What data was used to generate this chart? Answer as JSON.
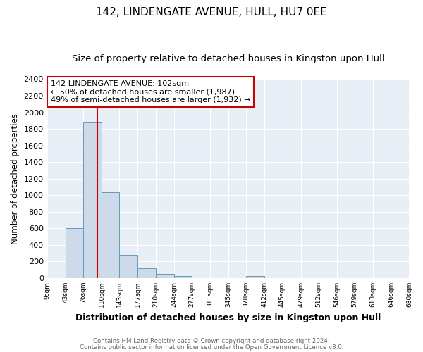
{
  "title": "142, LINDENGATE AVENUE, HULL, HU7 0EE",
  "subtitle": "Size of property relative to detached houses in Kingston upon Hull",
  "xlabel": "Distribution of detached houses by size in Kingston upon Hull",
  "ylabel": "Number of detached properties",
  "bin_edges": [
    9,
    43,
    76,
    110,
    143,
    177,
    210,
    244,
    277,
    311,
    345,
    378,
    412,
    445,
    479,
    512,
    546,
    579,
    613,
    646,
    680
  ],
  "bin_heights": [
    0,
    600,
    1880,
    1040,
    280,
    115,
    48,
    22,
    0,
    0,
    0,
    22,
    0,
    0,
    0,
    0,
    0,
    0,
    0,
    0
  ],
  "bar_color": "#ccdaea",
  "bar_edge_color": "#6699bb",
  "vline_x": 102,
  "vline_color": "#cc0000",
  "annotation_title": "142 LINDENGATE AVENUE: 102sqm",
  "annotation_line1": "← 50% of detached houses are smaller (1,987)",
  "annotation_line2": "49% of semi-detached houses are larger (1,932) →",
  "annotation_box_edge": "#cc0000",
  "annotation_box_bg": "white",
  "ylim": [
    0,
    2400
  ],
  "yticks": [
    0,
    200,
    400,
    600,
    800,
    1000,
    1200,
    1400,
    1600,
    1800,
    2000,
    2200,
    2400
  ],
  "tick_labels": [
    "9sqm",
    "43sqm",
    "76sqm",
    "110sqm",
    "143sqm",
    "177sqm",
    "210sqm",
    "244sqm",
    "277sqm",
    "311sqm",
    "345sqm",
    "378sqm",
    "412sqm",
    "445sqm",
    "479sqm",
    "512sqm",
    "546sqm",
    "579sqm",
    "613sqm",
    "646sqm",
    "680sqm"
  ],
  "footer_line1": "Contains HM Land Registry data © Crown copyright and database right 2024.",
  "footer_line2": "Contains public sector information licensed under the Open Government Licence v3.0.",
  "bg_color": "#ffffff",
  "plot_bg_color": "#e8eef5",
  "grid_color": "#ffffff",
  "title_fontsize": 11,
  "subtitle_fontsize": 9.5,
  "xlabel_fontsize": 9,
  "ylabel_fontsize": 8.5
}
